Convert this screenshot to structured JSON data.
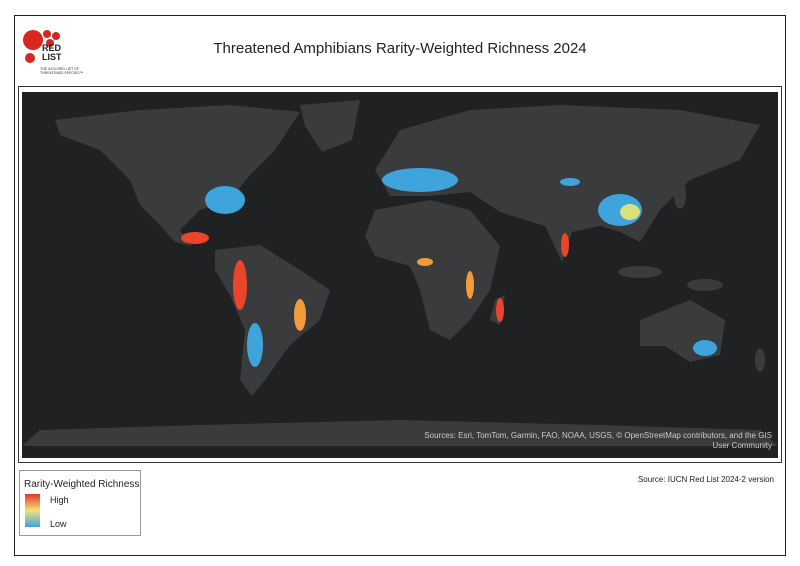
{
  "header": {
    "title": "Threatened Amphibians Rarity-Weighted Richness 2024",
    "logo": {
      "text": "RED LIST",
      "tagline": "THE IUCN RED LIST OF THREATENED SPECIES™"
    }
  },
  "map": {
    "attribution": "Sources: Esri, TomTom, Garmin, FAO, NOAA, USGS, © OpenStreetMap contributors, and the GIS User Community"
  },
  "legend": {
    "title": "Rarity-Weighted Richness",
    "high": "High",
    "low": "Low"
  },
  "footer": {
    "source": "Source: IUCN Red List 2024-2 version"
  }
}
